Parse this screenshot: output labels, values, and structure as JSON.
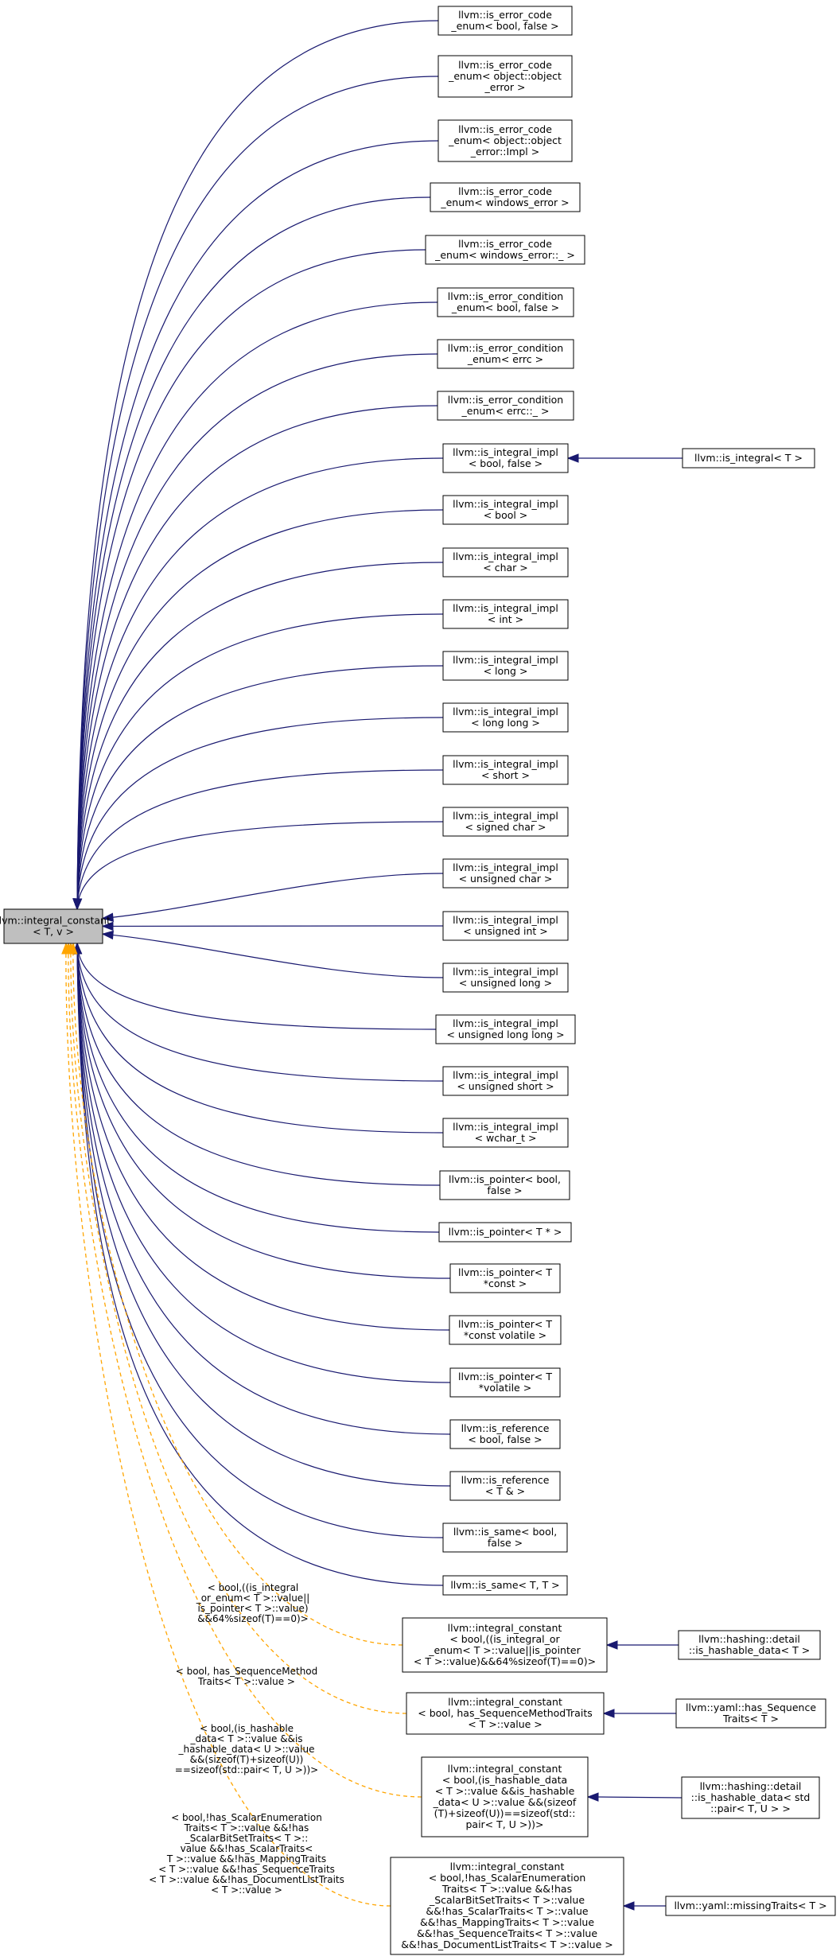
{
  "root": {
    "lines": [
      "llvm::integral_constant",
      "< T, v >"
    ]
  },
  "derived": [
    {
      "id": "n0",
      "lines": [
        "llvm::is_error_code",
        "_enum< bool, false >"
      ]
    },
    {
      "id": "n1",
      "lines": [
        "llvm::is_error_code",
        "_enum< object::object",
        "_error >"
      ]
    },
    {
      "id": "n2",
      "lines": [
        "llvm::is_error_code",
        "_enum< object::object",
        "_error::Impl >"
      ]
    },
    {
      "id": "n3",
      "lines": [
        "llvm::is_error_code",
        "_enum< windows_error >"
      ]
    },
    {
      "id": "n4",
      "lines": [
        "llvm::is_error_code",
        "_enum< windows_error::_ >"
      ]
    },
    {
      "id": "n5",
      "lines": [
        "llvm::is_error_condition",
        "_enum< bool, false >"
      ]
    },
    {
      "id": "n6",
      "lines": [
        "llvm::is_error_condition",
        "_enum< errc >"
      ]
    },
    {
      "id": "n7",
      "lines": [
        "llvm::is_error_condition",
        "_enum< errc::_ >"
      ]
    },
    {
      "id": "n8",
      "lines": [
        "llvm::is_integral_impl",
        "< bool, false >"
      ]
    },
    {
      "id": "n9",
      "lines": [
        "llvm::is_integral_impl",
        "< bool >"
      ]
    },
    {
      "id": "n10",
      "lines": [
        "llvm::is_integral_impl",
        "< char >"
      ]
    },
    {
      "id": "n11",
      "lines": [
        "llvm::is_integral_impl",
        "< int >"
      ]
    },
    {
      "id": "n12",
      "lines": [
        "llvm::is_integral_impl",
        "< long >"
      ]
    },
    {
      "id": "n13",
      "lines": [
        "llvm::is_integral_impl",
        "< long long >"
      ]
    },
    {
      "id": "n14",
      "lines": [
        "llvm::is_integral_impl",
        "< short >"
      ]
    },
    {
      "id": "n15",
      "lines": [
        "llvm::is_integral_impl",
        "< signed char >"
      ]
    },
    {
      "id": "n16",
      "lines": [
        "llvm::is_integral_impl",
        "< unsigned char >"
      ]
    },
    {
      "id": "n17",
      "lines": [
        "llvm::is_integral_impl",
        "< unsigned int >"
      ]
    },
    {
      "id": "n18",
      "lines": [
        "llvm::is_integral_impl",
        "< unsigned long >"
      ]
    },
    {
      "id": "n19",
      "lines": [
        "llvm::is_integral_impl",
        "< unsigned long long >"
      ]
    },
    {
      "id": "n20",
      "lines": [
        "llvm::is_integral_impl",
        "< unsigned short >"
      ]
    },
    {
      "id": "n21",
      "lines": [
        "llvm::is_integral_impl",
        "< wchar_t >"
      ]
    },
    {
      "id": "n22",
      "lines": [
        "llvm::is_pointer< bool,",
        "false >"
      ]
    },
    {
      "id": "n23",
      "lines": [
        "llvm::is_pointer< T * >"
      ]
    },
    {
      "id": "n24",
      "lines": [
        "llvm::is_pointer< T",
        "*const >"
      ]
    },
    {
      "id": "n25",
      "lines": [
        "llvm::is_pointer< T",
        "*const volatile >"
      ]
    },
    {
      "id": "n26",
      "lines": [
        "llvm::is_pointer< T",
        "*volatile >"
      ]
    },
    {
      "id": "n27",
      "lines": [
        "llvm::is_reference",
        "< bool, false >"
      ]
    },
    {
      "id": "n28",
      "lines": [
        "llvm::is_reference",
        "< T & >"
      ]
    },
    {
      "id": "n29",
      "lines": [
        "llvm::is_same< bool,",
        "false >"
      ]
    },
    {
      "id": "n30",
      "lines": [
        "llvm::is_same< T, T >"
      ]
    }
  ],
  "templated": [
    {
      "id": "t0",
      "lines": [
        "llvm::integral_constant",
        "< bool,((is_integral_or",
        "_enum< T >::value||is_pointer",
        "< T >::value)&&64%sizeof(T)==0)>"
      ],
      "label": [
        "< bool,((is_integral",
        "_or_enum< T >::value||",
        "is_pointer< T >::value)",
        "&&64%sizeof(T)==0)>"
      ]
    },
    {
      "id": "t1",
      "lines": [
        "llvm::integral_constant",
        "< bool, has_SequenceMethodTraits",
        "< T >::value >"
      ],
      "label": [
        "< bool, has_SequenceMethod",
        "Traits< T >::value >"
      ]
    },
    {
      "id": "t2",
      "lines": [
        "llvm::integral_constant",
        "< bool,(is_hashable_data",
        "< T >::value &&is_hashable",
        "_data< U >::value &&(sizeof",
        "(T)+sizeof(U))==sizeof(std::",
        "pair< T, U >))>"
      ],
      "label": [
        "< bool,(is_hashable",
        "_data< T >::value &&is",
        "_hashable_data< U >::value",
        "&&(sizeof(T)+sizeof(U))",
        "==sizeof(std::pair< T, U >))>"
      ]
    },
    {
      "id": "t3",
      "lines": [
        "llvm::integral_constant",
        "< bool,!has_ScalarEnumeration",
        "Traits< T >::value &&!has",
        "_ScalarBitSetTraits< T >::value",
        "&&!has_ScalarTraits< T >::value",
        "&&!has_MappingTraits< T >::value",
        "&&!has_SequenceTraits< T >::value",
        "&&!has_DocumentListTraits< T >::value >"
      ],
      "label": [
        "< bool,!has_ScalarEnumeration",
        "Traits< T >::value &&!has",
        "_ScalarBitSetTraits< T >::",
        "value &&!has_ScalarTraits<",
        " T >::value &&!has_MappingTraits",
        "< T >::value &&!has_SequenceTraits",
        "< T >::value &&!has_DocumentListTraits",
        "< T >::value >"
      ]
    }
  ],
  "subclasses": [
    {
      "id": "s8",
      "parent": "n8",
      "lines": [
        "llvm::is_integral< T >"
      ]
    },
    {
      "id": "st0",
      "parent": "t0",
      "lines": [
        "llvm::hashing::detail",
        "::is_hashable_data< T >"
      ]
    },
    {
      "id": "st1",
      "parent": "t1",
      "lines": [
        "llvm::yaml::has_Sequence",
        "Traits< T >"
      ]
    },
    {
      "id": "st2",
      "parent": "t2",
      "lines": [
        "llvm::hashing::detail",
        "::is_hashable_data< std",
        "::pair< T, U > >"
      ]
    },
    {
      "id": "st3",
      "parent": "t3",
      "lines": [
        "llvm::yaml::missingTraits< T >"
      ]
    }
  ],
  "colors": {
    "solid_edge": "#191970",
    "dashed_edge": "#ffa500",
    "root_fill": "#bfbfbf"
  }
}
